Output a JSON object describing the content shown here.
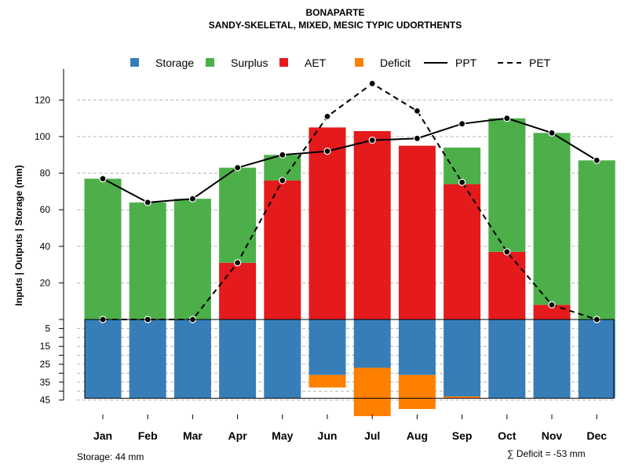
{
  "chart_data": {
    "type": "bar",
    "title": "BONAPARTE",
    "subtitle": "SANDY-SKELETAL, MIXED, MESIC TYPIC UDORTHENTS",
    "ylabel": "Inputs | Outputs | Storage    (mm)",
    "categories": [
      "Jan",
      "Feb",
      "Mar",
      "Apr",
      "May",
      "Jun",
      "Jul",
      "Aug",
      "Sep",
      "Oct",
      "Nov",
      "Dec"
    ],
    "upper_ticks": [
      20,
      40,
      60,
      80,
      100,
      120
    ],
    "upper_tick_labels": [
      "20",
      "40",
      "60",
      "80",
      "100",
      "120"
    ],
    "lower_ticks": [
      5,
      15,
      25,
      35,
      45
    ],
    "lower_tick_labels": [
      "5",
      "15",
      "25",
      "35",
      "45"
    ],
    "ylim_upper": [
      0,
      130
    ],
    "ylim_lower": [
      0,
      45
    ],
    "storage_capacity": 44,
    "series": [
      {
        "name": "Storage",
        "color": "#377EB8",
        "values": [
          44,
          44,
          44,
          44,
          44,
          31,
          27,
          31,
          43,
          44,
          44,
          44
        ]
      },
      {
        "name": "Deficit",
        "color": "#FF7F00",
        "values": [
          0,
          0,
          0,
          0,
          0,
          7,
          27,
          19,
          1,
          0,
          0,
          0
        ]
      },
      {
        "name": "AET",
        "color": "#E41A1C",
        "values": [
          0,
          0,
          0,
          31,
          76,
          105,
          103,
          95,
          74,
          37,
          8,
          0
        ]
      },
      {
        "name": "Surplus",
        "color": "#4DAF4A",
        "values": [
          77,
          64,
          66,
          52,
          14,
          0,
          0,
          0,
          20,
          73,
          94,
          87
        ]
      },
      {
        "name": "PPT",
        "color": "#000000",
        "values": [
          77,
          64,
          66,
          83,
          90,
          92,
          98,
          99,
          107,
          110,
          102,
          87
        ]
      },
      {
        "name": "PET",
        "color": "#000000",
        "values": [
          0,
          0,
          0,
          31,
          76,
          111,
          129,
          114,
          75,
          37,
          8,
          0
        ]
      }
    ],
    "legend": [
      {
        "label": "Storage",
        "kind": "box",
        "color": "#377EB8"
      },
      {
        "label": "Surplus",
        "kind": "box",
        "color": "#4DAF4A"
      },
      {
        "label": "AET",
        "kind": "box",
        "color": "#E41A1C"
      },
      {
        "label": "Deficit",
        "kind": "box",
        "color": "#FF7F00"
      },
      {
        "label": "PPT",
        "kind": "solid",
        "color": "#000000"
      },
      {
        "label": "PET",
        "kind": "dashed",
        "color": "#000000"
      }
    ],
    "legend_position": "top",
    "storage_note": "Storage: 44 mm",
    "deficit_note": "∑ Deficit = -53 mm"
  }
}
